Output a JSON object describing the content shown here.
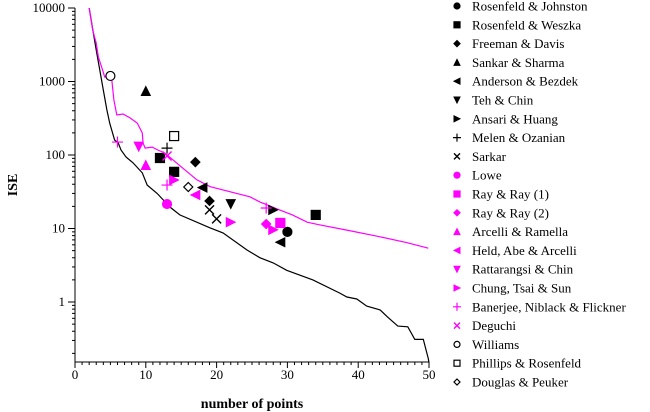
{
  "chart_data": {
    "type": "scatter",
    "xlabel": "number of points",
    "ylabel": "ISE",
    "xlim": [
      0,
      50
    ],
    "ylim": [
      0.15,
      10000
    ],
    "y_scale": "log",
    "x_ticks": [
      "0",
      "10",
      "20",
      "30",
      "40",
      "50"
    ],
    "y_ticks": [
      "1",
      "10",
      "100",
      "1000",
      "10000"
    ],
    "grid": false,
    "legend_placement": "right",
    "colors": {
      "black": "#000000",
      "magenta": "#ff00ff"
    },
    "lines": [
      {
        "color": "#000000",
        "points": [
          [
            2,
            10000
          ],
          [
            2.4,
            5880
          ],
          [
            3,
            2690
          ],
          [
            3.5,
            1430
          ],
          [
            4,
            766
          ],
          [
            4.5,
            409
          ],
          [
            4.9,
            272
          ],
          [
            5.6,
            160
          ],
          [
            6.1,
            146
          ],
          [
            6.5,
            117
          ],
          [
            7.2,
            94
          ],
          [
            8.2,
            78
          ],
          [
            9.5,
            57
          ],
          [
            10.2,
            39
          ],
          [
            11.6,
            30
          ],
          [
            13.4,
            19.6
          ],
          [
            14.8,
            15.3
          ],
          [
            19.1,
            10.2
          ],
          [
            20.9,
            8.7
          ],
          [
            24.3,
            5.1
          ],
          [
            26.1,
            4.0
          ],
          [
            28,
            3.4
          ],
          [
            29.9,
            2.7
          ],
          [
            33.6,
            2.0
          ],
          [
            37.4,
            1.32
          ],
          [
            38.4,
            1.17
          ],
          [
            39.8,
            1.1
          ],
          [
            41.2,
            0.88
          ],
          [
            43.1,
            0.78
          ],
          [
            44.1,
            0.63
          ],
          [
            45.6,
            0.47
          ],
          [
            47,
            0.46
          ],
          [
            48,
            0.31
          ],
          [
            49.2,
            0.31
          ],
          [
            49.9,
            0.17
          ],
          [
            50,
            0.15
          ]
        ]
      },
      {
        "color": "#ff00ff",
        "points": [
          [
            2,
            10000
          ],
          [
            2.5,
            5020
          ],
          [
            3,
            3340
          ],
          [
            3.3,
            2150
          ],
          [
            3.9,
            1430
          ],
          [
            4.2,
            1150
          ],
          [
            4.7,
            1225
          ],
          [
            5.2,
            1047
          ],
          [
            5.5,
            560
          ],
          [
            5.9,
            350
          ],
          [
            6.8,
            361
          ],
          [
            7.8,
            319
          ],
          [
            8.8,
            272
          ],
          [
            9.5,
            199
          ],
          [
            9.6,
            146
          ],
          [
            9.9,
            124
          ],
          [
            10.9,
            128
          ],
          [
            11.7,
            117
          ],
          [
            12.7,
            106
          ],
          [
            15,
            69
          ],
          [
            17.2,
            46
          ],
          [
            19.1,
            37
          ],
          [
            24.7,
            27
          ],
          [
            26.1,
            23
          ],
          [
            28.9,
            17.9
          ],
          [
            30.7,
            15.3
          ],
          [
            32.8,
            12.2
          ],
          [
            34.6,
            11.2
          ],
          [
            38.4,
            9.5
          ],
          [
            43.1,
            7.7
          ],
          [
            46.9,
            6.4
          ],
          [
            49.9,
            5.4
          ]
        ]
      }
    ],
    "series": [
      {
        "name": "Rosenfeld & Johnston",
        "marker": "circle",
        "color": "#000000",
        "fill": true,
        "points": [
          [
            30,
            9.0
          ]
        ]
      },
      {
        "name": "Rosenfeld & Weszka",
        "marker": "square",
        "color": "#000000",
        "fill": true,
        "points": [
          [
            12,
            91
          ],
          [
            14,
            59
          ],
          [
            34,
            15.3
          ]
        ]
      },
      {
        "name": "Freeman & Davis",
        "marker": "diamond",
        "color": "#000000",
        "fill": true,
        "points": [
          [
            17,
            80
          ],
          [
            19,
            23.7
          ]
        ]
      },
      {
        "name": "Sankar & Sharma",
        "marker": "triangle-up",
        "color": "#000000",
        "fill": true,
        "points": [
          [
            10,
            743
          ]
        ]
      },
      {
        "name": "Anderson & Bezdek",
        "marker": "triangle-left",
        "color": "#000000",
        "fill": true,
        "points": [
          [
            18,
            36
          ],
          [
            29,
            6.5
          ]
        ]
      },
      {
        "name": "Teh & Chin",
        "marker": "triangle-down",
        "color": "#000000",
        "fill": true,
        "points": [
          [
            22,
            21.5
          ]
        ]
      },
      {
        "name": "Ansari & Huang",
        "marker": "triangle-right",
        "color": "#000000",
        "fill": true,
        "points": [
          [
            28,
            17.9
          ]
        ]
      },
      {
        "name": "Melen & Ozanian",
        "marker": "plus",
        "color": "#000000",
        "fill": true,
        "points": [
          [
            13,
            124
          ]
        ]
      },
      {
        "name": "Sarkar",
        "marker": "cross",
        "color": "#000000",
        "fill": true,
        "points": [
          [
            19,
            17.9
          ],
          [
            20,
            13.5
          ]
        ]
      },
      {
        "name": "Lowe",
        "marker": "circle",
        "color": "#ff00ff",
        "fill": true,
        "points": [
          [
            13,
            21.5
          ]
        ]
      },
      {
        "name": "Ray & Ray (1)",
        "marker": "square",
        "color": "#ff00ff",
        "fill": true,
        "points": [
          [
            29,
            11.9
          ]
        ]
      },
      {
        "name": "Ray & Ray (2)",
        "marker": "diamond",
        "color": "#ff00ff",
        "fill": true,
        "points": [
          [
            27,
            11.5
          ]
        ]
      },
      {
        "name": "Arcelli & Ramella",
        "marker": "triangle-up",
        "color": "#ff00ff",
        "fill": true,
        "points": [
          [
            10,
            73
          ]
        ]
      },
      {
        "name": "Held, Abe & Arcelli",
        "marker": "triangle-left",
        "color": "#ff00ff",
        "fill": true,
        "points": [
          [
            17,
            28.6
          ]
        ]
      },
      {
        "name": "Rattarangsi & Chin",
        "marker": "triangle-down",
        "color": "#ff00ff",
        "fill": true,
        "points": [
          [
            9,
            130
          ]
        ]
      },
      {
        "name": "Chung, Tsai & Sun",
        "marker": "triangle-right",
        "color": "#ff00ff",
        "fill": true,
        "points": [
          [
            14,
            45.7
          ],
          [
            22,
            12.2
          ],
          [
            28,
            9.6
          ]
        ]
      },
      {
        "name": "Banerjee, Niblack & Flickner",
        "marker": "plus",
        "color": "#ff00ff",
        "fill": true,
        "points": [
          [
            6,
            150
          ],
          [
            13,
            39
          ],
          [
            27,
            19
          ]
        ]
      },
      {
        "name": "Deguchi",
        "marker": "cross",
        "color": "#ff00ff",
        "fill": true,
        "points": [
          [
            13,
            97
          ]
        ]
      },
      {
        "name": "Williams",
        "marker": "circle",
        "color": "#000000",
        "fill": false,
        "points": [
          [
            5,
            1190
          ]
        ]
      },
      {
        "name": "Phillips & Rosenfeld",
        "marker": "square",
        "color": "#000000",
        "fill": false,
        "points": [
          [
            14,
            181
          ]
        ]
      },
      {
        "name": "Douglas & Peuker",
        "marker": "diamond",
        "color": "#000000",
        "fill": false,
        "points": [
          [
            16,
            36.7
          ]
        ]
      }
    ]
  }
}
